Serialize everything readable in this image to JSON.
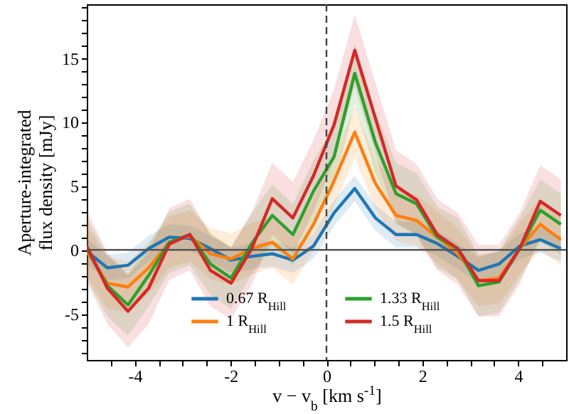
{
  "chart_data": {
    "type": "line",
    "xlabel": "v − v$_{b}$ [km s$^{-1}$]",
    "ylabel": "Aperture-integrated flux density [mJy]",
    "x": [
      -5,
      -4.57,
      -4.14,
      -3.71,
      -3.28,
      -2.85,
      -2.42,
      -1.99,
      -1.56,
      -1.13,
      -0.7,
      -0.27,
      0.16,
      0.59,
      1.02,
      1.45,
      1.88,
      2.31,
      2.74,
      3.17,
      3.6,
      4.03,
      4.46,
      4.89
    ],
    "series": [
      {
        "name": "0.67 R$_{Hill}$",
        "color": "#1f77b4",
        "values": [
          -0.1,
          -1.4,
          -1.2,
          0.1,
          1.0,
          0.9,
          0.1,
          -0.8,
          -0.5,
          -0.3,
          -0.8,
          0.3,
          2.9,
          4.8,
          2.5,
          1.2,
          1.2,
          0.5,
          -0.5,
          -1.6,
          -1.1,
          0.3,
          0.8,
          0.1
        ],
        "lower": [
          -1.1,
          -2.4,
          -2.2,
          -0.9,
          0.0,
          -0.1,
          -0.9,
          -1.8,
          -1.5,
          -1.3,
          -1.8,
          -0.7,
          1.9,
          3.8,
          1.5,
          0.2,
          0.2,
          -0.5,
          -1.5,
          -2.6,
          -2.1,
          -0.7,
          -0.2,
          -0.9
        ],
        "upper": [
          0.9,
          -0.4,
          -0.2,
          1.1,
          2.0,
          1.9,
          1.1,
          0.2,
          0.5,
          0.7,
          0.2,
          1.3,
          3.9,
          5.8,
          3.5,
          2.2,
          2.2,
          1.5,
          0.5,
          -0.6,
          -0.1,
          1.3,
          1.8,
          1.1
        ]
      },
      {
        "name": "1 R$_{Hill}$",
        "color": "#ff7f0e",
        "values": [
          -0.1,
          -2.6,
          -2.9,
          -1.4,
          0.6,
          1.1,
          -0.3,
          -0.7,
          0.1,
          0.6,
          -0.7,
          2.0,
          5.4,
          9.2,
          5.2,
          2.7,
          2.3,
          1.0,
          -0.3,
          -2.4,
          -2.2,
          0.1,
          2.0,
          0.8
        ],
        "lower": [
          -2.1,
          -4.6,
          -4.9,
          -3.4,
          -1.4,
          -0.9,
          -2.3,
          -2.7,
          -1.9,
          -1.4,
          -2.7,
          0.0,
          3.4,
          7.2,
          3.2,
          0.7,
          0.3,
          -1.0,
          -2.3,
          -4.4,
          -4.2,
          -1.9,
          0.0,
          -1.2
        ],
        "upper": [
          1.9,
          -0.6,
          -0.9,
          0.6,
          2.6,
          3.1,
          1.7,
          1.3,
          2.1,
          2.6,
          1.3,
          4.0,
          7.4,
          11.2,
          7.2,
          4.7,
          4.3,
          3.0,
          1.7,
          -0.4,
          -0.2,
          2.1,
          4.0,
          2.8
        ]
      },
      {
        "name": "1.33 R$_{Hill}$",
        "color": "#2ca02c",
        "values": [
          0.1,
          -2.8,
          -4.3,
          -2.0,
          0.6,
          1.2,
          -1.1,
          -2.2,
          0.5,
          2.7,
          1.2,
          4.6,
          7.3,
          13.8,
          8.4,
          4.4,
          3.6,
          1.0,
          0.1,
          -2.8,
          -2.5,
          0.1,
          3.1,
          2.0
        ],
        "lower": [
          -2.3,
          -5.2,
          -6.7,
          -4.4,
          -1.8,
          -1.2,
          -3.5,
          -4.6,
          -1.9,
          0.3,
          -1.2,
          2.2,
          4.9,
          11.4,
          6.0,
          2.0,
          1.2,
          -1.4,
          -2.3,
          -5.2,
          -4.9,
          -2.3,
          0.7,
          -0.4
        ],
        "upper": [
          2.5,
          -0.4,
          -1.9,
          0.4,
          3.0,
          3.6,
          1.3,
          0.2,
          2.9,
          5.1,
          3.6,
          7.0,
          9.7,
          16.2,
          10.8,
          6.8,
          6.0,
          3.4,
          2.5,
          -0.4,
          -0.1,
          2.5,
          5.5,
          4.4
        ]
      },
      {
        "name": "1.5 R$_{Hill}$",
        "color": "#d62728",
        "values": [
          0.3,
          -3.0,
          -4.8,
          -3.0,
          0.45,
          1.2,
          -1.6,
          -2.6,
          0.1,
          4.0,
          2.5,
          5.8,
          9.8,
          15.6,
          10.3,
          5.0,
          3.9,
          1.2,
          0.1,
          -2.4,
          -2.4,
          0.1,
          3.8,
          2.7
        ],
        "lower": [
          -2.5,
          -5.8,
          -7.6,
          -5.8,
          -2.35,
          -1.6,
          -4.4,
          -5.4,
          -2.7,
          1.2,
          -0.3,
          3.0,
          7.0,
          12.8,
          7.5,
          2.2,
          1.1,
          -1.6,
          -2.7,
          -5.2,
          -5.2,
          -2.7,
          1.0,
          -0.1
        ],
        "upper": [
          3.1,
          -0.2,
          -2.0,
          -0.2,
          3.25,
          4.0,
          1.2,
          0.2,
          2.9,
          6.8,
          5.3,
          8.6,
          12.6,
          18.4,
          13.1,
          7.8,
          6.7,
          4.0,
          2.9,
          0.4,
          0.4,
          2.9,
          6.6,
          5.5
        ]
      }
    ],
    "xlim": [
      -5,
      5
    ],
    "xticks": [
      {
        "value": -4.5,
        "label": null
      },
      -4,
      {
        "value": -3.5,
        "label": null
      },
      {
        "value": -3,
        "label": null
      },
      {
        "value": -2.5,
        "label": null
      },
      -2,
      {
        "value": -1.5,
        "label": null
      },
      {
        "value": -1,
        "label": null
      },
      {
        "value": -0.5,
        "label": null
      },
      0,
      {
        "value": 0.5,
        "label": null
      },
      {
        "value": 1,
        "label": null
      },
      {
        "value": 1.5,
        "label": null
      },
      2,
      {
        "value": 2.5,
        "label": null
      },
      {
        "value": 3,
        "label": null
      },
      {
        "value": 3.5,
        "label": null
      },
      4,
      {
        "value": 4.5,
        "label": null
      }
    ],
    "ylim": [
      -8.6,
      19.2
    ],
    "yticks": [
      {
        "value": -8,
        "label": null
      },
      {
        "value": -7,
        "label": null
      },
      {
        "value": -6,
        "label": null
      },
      -5,
      {
        "value": -4,
        "label": null
      },
      {
        "value": -3,
        "label": null
      },
      {
        "value": -2,
        "label": null
      },
      {
        "value": -1,
        "label": null
      },
      0,
      {
        "value": 1,
        "label": null
      },
      {
        "value": 2,
        "label": null
      },
      {
        "value": 3,
        "label": null
      },
      {
        "value": 4,
        "label": null
      },
      5,
      {
        "value": 6,
        "label": null
      },
      {
        "value": 7,
        "label": null
      },
      {
        "value": 8,
        "label": null
      },
      {
        "value": 9,
        "label": null
      },
      10,
      {
        "value": 11,
        "label": null
      },
      {
        "value": 12,
        "label": null
      },
      {
        "value": 13,
        "label": null
      },
      {
        "value": 14,
        "label": null
      },
      15,
      {
        "value": 16,
        "label": null
      },
      {
        "value": 17,
        "label": null
      },
      {
        "value": 18,
        "label": null
      },
      {
        "value": 19,
        "label": null
      }
    ],
    "ref_lines": [
      {
        "axis": "y",
        "value": 0,
        "color": "#555555",
        "line_style": "solid"
      },
      {
        "axis": "x",
        "value": 0,
        "color": "#444444",
        "line_style": "dashed"
      }
    ],
    "grid": false,
    "legend": "bottom",
    "line_style": "solid",
    "marker": "none"
  }
}
